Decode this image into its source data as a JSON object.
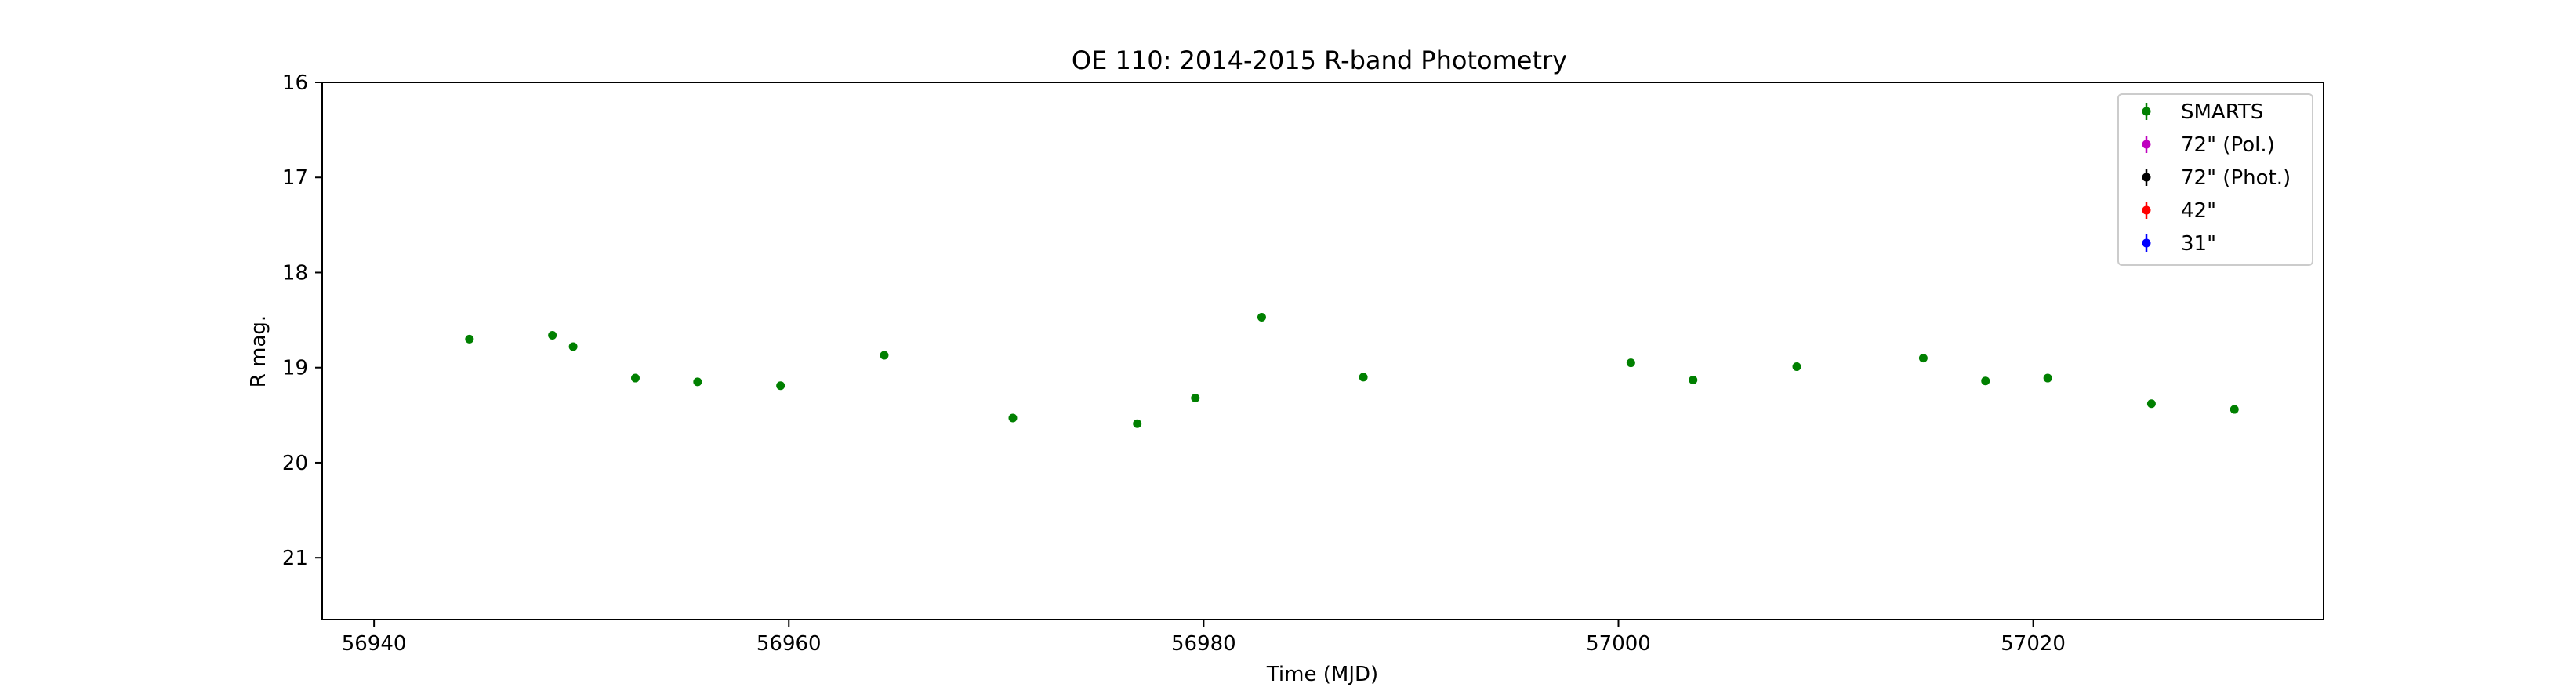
{
  "chart_data": {
    "type": "scatter",
    "title": "OE 110: 2014-2015 R-band Photometry",
    "xlabel": "Time (MJD)",
    "ylabel": "R mag.",
    "xlim": [
      56937.5,
      57034.0
    ],
    "ylim": [
      21.65,
      16.0
    ],
    "y_inverted": true,
    "grid": false,
    "legend_position": "top-right",
    "x_ticks": [
      56940,
      56960,
      56980,
      57000,
      57020
    ],
    "y_ticks": [
      16,
      17,
      18,
      19,
      20,
      21
    ],
    "series": [
      {
        "name": "SMARTS",
        "color": "#008000",
        "points": [
          {
            "x": 56944.6,
            "y": 18.7
          },
          {
            "x": 56948.6,
            "y": 18.66
          },
          {
            "x": 56949.6,
            "y": 18.78
          },
          {
            "x": 56952.6,
            "y": 19.11
          },
          {
            "x": 56955.6,
            "y": 19.15
          },
          {
            "x": 56959.6,
            "y": 19.19
          },
          {
            "x": 56964.6,
            "y": 18.87
          },
          {
            "x": 56970.8,
            "y": 19.53
          },
          {
            "x": 56976.8,
            "y": 19.59
          },
          {
            "x": 56979.6,
            "y": 19.32
          },
          {
            "x": 56982.8,
            "y": 18.47
          },
          {
            "x": 56987.7,
            "y": 19.1
          },
          {
            "x": 57000.6,
            "y": 18.95
          },
          {
            "x": 57003.6,
            "y": 19.13
          },
          {
            "x": 57008.6,
            "y": 18.99
          },
          {
            "x": 57014.7,
            "y": 18.9
          },
          {
            "x": 57017.7,
            "y": 19.14
          },
          {
            "x": 57020.7,
            "y": 19.11
          },
          {
            "x": 57025.7,
            "y": 19.38
          },
          {
            "x": 57029.7,
            "y": 19.44
          }
        ]
      },
      {
        "name": "72\" (Pol.)",
        "color": "#bf00bf",
        "points": []
      },
      {
        "name": "72\" (Phot.)",
        "color": "#000000",
        "points": []
      },
      {
        "name": "42\"",
        "color": "#ff0000",
        "points": []
      },
      {
        "name": "31\"",
        "color": "#0000ff",
        "points": []
      }
    ]
  }
}
